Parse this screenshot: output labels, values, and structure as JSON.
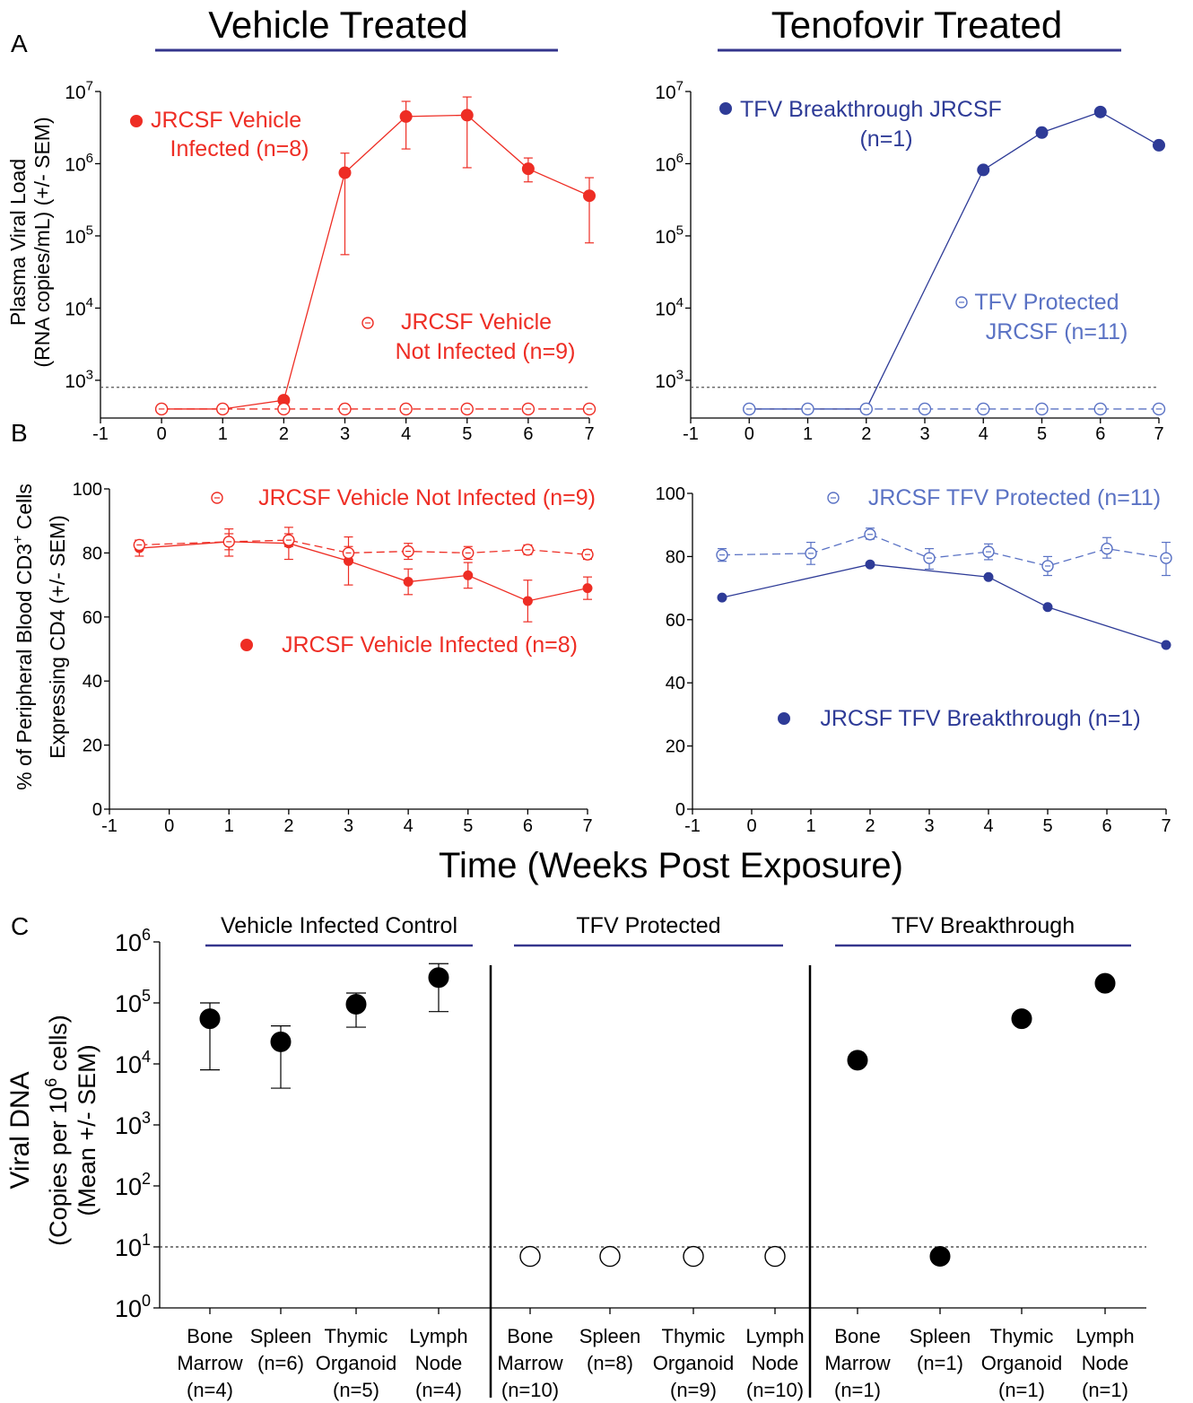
{
  "colors": {
    "red": "#ee2d24",
    "blue": "#2e3b97",
    "lightblue": "#5a72c4",
    "black": "#000000",
    "underline": "#34358c"
  },
  "headers": {
    "vehicle": "Vehicle Treated",
    "tenofovir": "Tenofovir Treated"
  },
  "panel_labels": {
    "a": "A",
    "b": "B",
    "c": "C"
  },
  "shared_xlabel": "Time (Weeks Post Exposure)",
  "chart_data": [
    {
      "id": "A_vehicle",
      "type": "line",
      "ylabel": [
        "Plasma Viral Load",
        "(RNA copies/mL) (+/- SEM)"
      ],
      "xticks": [
        "-1",
        "0",
        "1",
        "2",
        "3",
        "4",
        "5",
        "6",
        "7"
      ],
      "yticks": [
        "10^3",
        "10^4",
        "10^5",
        "10^6",
        "10^7"
      ],
      "yscale": "log",
      "ylim": [
        300,
        10000000
      ],
      "xlim": [
        -1,
        7
      ],
      "detection_limit": 800,
      "series": [
        {
          "name": "JRCSF Vehicle Infected (n=8)",
          "legend": [
            "JRCSF Vehicle",
            "Infected (n=8)"
          ],
          "color": "red",
          "filled": true,
          "dashed": false,
          "x": [
            0,
            1,
            2,
            3,
            4,
            5,
            6,
            7
          ],
          "y": [
            400,
            400,
            530,
            750000,
            4500000,
            4700000,
            850000,
            360000
          ],
          "err_low": [
            null,
            null,
            null,
            55000,
            1600000,
            880000,
            560000,
            80000
          ],
          "err_high": [
            null,
            null,
            null,
            1400000,
            7300000,
            8400000,
            1200000,
            640000
          ]
        },
        {
          "name": "JRCSF Vehicle Not Infected (n=9)",
          "legend": [
            "JRCSF Vehicle",
            "Not Infected (n=9)"
          ],
          "color": "red",
          "filled": false,
          "dashed": true,
          "x": [
            0,
            1,
            2,
            3,
            4,
            5,
            6,
            7
          ],
          "y": [
            400,
            400,
            400,
            400,
            400,
            400,
            400,
            400
          ]
        }
      ]
    },
    {
      "id": "A_tenofovir",
      "type": "line",
      "xticks": [
        "-1",
        "0",
        "1",
        "2",
        "3",
        "4",
        "5",
        "6",
        "7"
      ],
      "yticks": [
        "10^3",
        "10^4",
        "10^5",
        "10^6",
        "10^7"
      ],
      "yscale": "log",
      "ylim": [
        300,
        10000000
      ],
      "xlim": [
        -1,
        7
      ],
      "detection_limit": 800,
      "series": [
        {
          "name": "TFV Breakthrough JRCSF (n=1)",
          "legend": [
            "TFV Breakthrough JRCSF",
            "(n=1)"
          ],
          "color": "blue",
          "filled": true,
          "dashed": false,
          "x": [
            0,
            1,
            2,
            3,
            4,
            5,
            6,
            7
          ],
          "y": [
            400,
            null,
            400,
            null,
            820000,
            2700000,
            5200000,
            1800000
          ]
        },
        {
          "name": "TFV Protected JRCSF (n=11)",
          "legend": [
            "TFV Protected",
            "JRCSF (n=11)"
          ],
          "color": "lightblue",
          "filled": false,
          "dashed": true,
          "x": [
            0,
            1,
            2,
            3,
            4,
            5,
            6,
            7
          ],
          "y": [
            400,
            400,
            400,
            400,
            400,
            400,
            400,
            400
          ]
        }
      ]
    },
    {
      "id": "B_vehicle",
      "type": "line",
      "ylabel": [
        "% of Peripheral Blood CD3",
        "+",
        " Cells",
        "Expressing CD4  (+/- SEM)"
      ],
      "xticks": [
        "-1",
        "0",
        "1",
        "2",
        "3",
        "4",
        "5",
        "6",
        "7"
      ],
      "yticks": [
        "0",
        "20",
        "40",
        "60",
        "80",
        "100"
      ],
      "ylim": [
        0,
        100
      ],
      "xlim": [
        -1,
        7
      ],
      "series": [
        {
          "name": "JRCSF Vehicle Infected (n=8)",
          "color": "red",
          "filled": true,
          "dashed": false,
          "x": [
            -0.5,
            1,
            2,
            3,
            4,
            5,
            6,
            7
          ],
          "y": [
            81.5,
            83.5,
            83,
            77.5,
            71,
            73,
            65,
            69
          ],
          "err_low": [
            79,
            79,
            78,
            70,
            67,
            69,
            58.5,
            65.5
          ],
          "err_high": [
            84,
            87.5,
            88,
            85,
            75,
            77,
            71.5,
            72.5
          ]
        },
        {
          "name": "JRCSF Vehicle Not Infected  (n=9)",
          "color": "red",
          "filled": false,
          "dashed": true,
          "x": [
            -0.5,
            1,
            2,
            3,
            4,
            5,
            6,
            7
          ],
          "y": [
            82.5,
            83.5,
            84,
            80,
            80.5,
            80,
            81,
            79.5
          ],
          "err_low": [
            81,
            81,
            82,
            78,
            78,
            78,
            79.5,
            78
          ],
          "err_high": [
            84,
            86,
            86,
            82,
            83,
            82,
            82.5,
            81
          ]
        }
      ]
    },
    {
      "id": "B_tenofovir",
      "type": "line",
      "xticks": [
        "-1",
        "0",
        "1",
        "2",
        "3",
        "4",
        "5",
        "6",
        "7"
      ],
      "yticks": [
        "0",
        "20",
        "40",
        "60",
        "80",
        "100"
      ],
      "ylim": [
        0,
        100
      ],
      "xlim": [
        -1,
        7
      ],
      "series": [
        {
          "name": "JRCSF TFV Breakthrough (n=1)",
          "color": "blue",
          "filled": true,
          "dashed": false,
          "x": [
            -0.5,
            2,
            4,
            5,
            7
          ],
          "y": [
            67,
            77.5,
            73.5,
            64,
            52
          ]
        },
        {
          "name": "JRCSF TFV Protected (n=11)",
          "color": "lightblue",
          "filled": false,
          "dashed": true,
          "x": [
            -0.5,
            1,
            2,
            3,
            4,
            5,
            6,
            7
          ],
          "y": [
            80.5,
            81,
            87,
            79.5,
            81.5,
            77,
            82.5,
            79.5
          ],
          "err_low": [
            78.5,
            77.5,
            85.5,
            76,
            79,
            74,
            79.5,
            74
          ],
          "err_high": [
            82.5,
            84.5,
            89,
            82.5,
            84,
            80,
            86,
            84.5
          ]
        }
      ]
    },
    {
      "id": "C",
      "type": "scatter",
      "ylabel": [
        "Viral DNA",
        "(Copies per 10",
        "6",
        " cells)",
        "(Mean +/- SEM)"
      ],
      "yticks": [
        "10^0",
        "10^1",
        "10^2",
        "10^3",
        "10^4",
        "10^5",
        "10^6"
      ],
      "yscale": "log",
      "ylim": [
        1,
        1000000
      ],
      "detection_limit": 10,
      "groups": [
        {
          "name": "Vehicle Infected Control",
          "filled": true,
          "categories": [
            [
              "Bone",
              "Marrow",
              "(n=4)"
            ],
            [
              "Spleen",
              "(n=6)"
            ],
            [
              "Thymic",
              "Organoid",
              "(n=5)"
            ],
            [
              "Lymph",
              "Node",
              "(n=4)"
            ]
          ],
          "values": [
            55000,
            23000,
            95000,
            260000
          ],
          "err_low": [
            8000,
            4000,
            40000,
            72000
          ],
          "err_high": [
            100000,
            42000,
            145000,
            440000
          ]
        },
        {
          "name": "TFV Protected",
          "filled": false,
          "categories": [
            [
              "Bone",
              "Marrow",
              "(n=10)"
            ],
            [
              "Spleen",
              "(n=8)"
            ],
            [
              "Thymic",
              "Organoid",
              "(n=9)"
            ],
            [
              "Lymph",
              "Node",
              "(n=10)"
            ]
          ],
          "values": [
            7,
            7,
            7,
            7
          ]
        },
        {
          "name": "TFV Breakthrough",
          "filled": true,
          "categories": [
            [
              "Bone",
              "Marrow",
              "(n=1)"
            ],
            [
              "Spleen",
              "(n=1)"
            ],
            [
              "Thymic",
              "Organoid",
              "(n=1)"
            ],
            [
              "Lymph",
              "Node",
              "(n=1)"
            ]
          ],
          "values": [
            11500,
            7,
            55000,
            210000
          ]
        }
      ]
    }
  ]
}
